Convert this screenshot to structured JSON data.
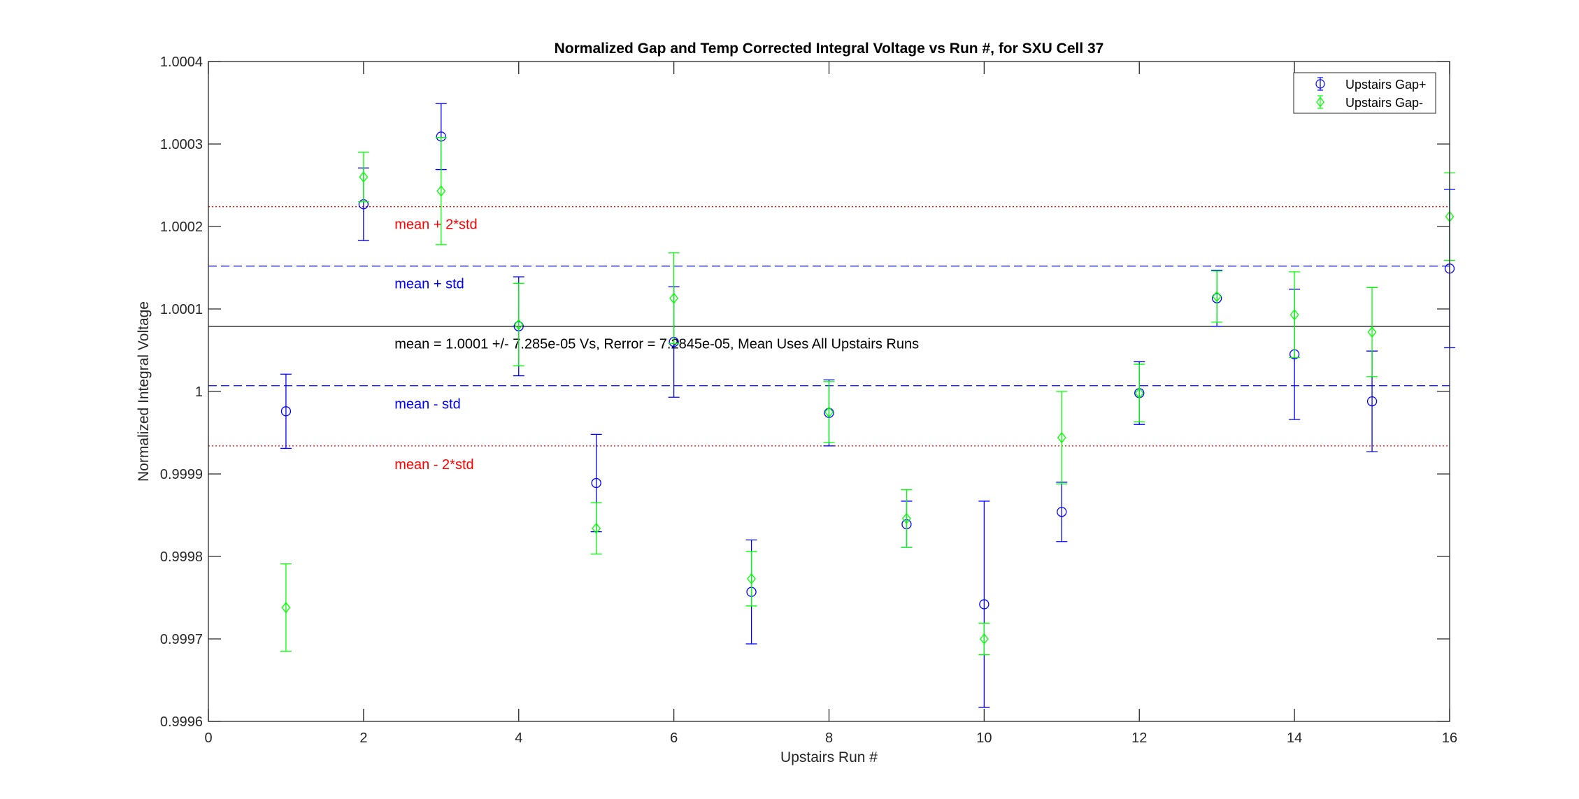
{
  "chart_data": {
    "type": "scatter",
    "title": "Normalized Gap and Temp Corrected Integral Voltage vs Run #, for SXU Cell 37",
    "xlabel": "Upstairs Run #",
    "ylabel": "Normalized Integral Voltage",
    "xlim": [
      0,
      16
    ],
    "ylim": [
      0.9996,
      1.0004
    ],
    "xticks": [
      0,
      2,
      4,
      6,
      8,
      10,
      12,
      14,
      16
    ],
    "xtick_labels": [
      "0",
      "2",
      "4",
      "6",
      "8",
      "10",
      "12",
      "14",
      "16"
    ],
    "yticks": [
      0.9996,
      0.9997,
      0.9998,
      0.9999,
      1.0,
      1.0001,
      1.0002,
      1.0003,
      1.0004
    ],
    "ytick_labels": [
      "0.9996",
      "0.9997",
      "0.9998",
      "0.9999",
      "1",
      "1.0001",
      "1.0002",
      "1.0003",
      "1.0004"
    ],
    "grid": false,
    "legend_position": "top-right",
    "series": [
      {
        "name": "Upstairs Gap+",
        "marker": "circle",
        "color": "#0000ff",
        "x": [
          1,
          2,
          3,
          4,
          5,
          6,
          7,
          8,
          9,
          10,
          11,
          12,
          13,
          14,
          15,
          16
        ],
        "y": [
          0.999976,
          1.000227,
          1.000309,
          1.000079,
          0.999889,
          1.00006,
          0.999757,
          0.999974,
          0.999839,
          0.999742,
          0.999854,
          0.999998,
          1.000113,
          1.000045,
          0.999988,
          1.000149
        ],
        "err_low": [
          4.5e-05,
          4.4e-05,
          4e-05,
          6e-05,
          5.9e-05,
          6.7e-05,
          6.3e-05,
          4e-05,
          2.8e-05,
          0.000125,
          3.6e-05,
          3.8e-05,
          3.4e-05,
          7.9e-05,
          6.1e-05,
          9.6e-05
        ],
        "err_high": [
          4.5e-05,
          4.4e-05,
          4e-05,
          6e-05,
          5.9e-05,
          6.7e-05,
          6.3e-05,
          4e-05,
          2.8e-05,
          0.000125,
          3.6e-05,
          3.8e-05,
          3.4e-05,
          7.9e-05,
          6.1e-05,
          9.6e-05
        ]
      },
      {
        "name": "Upstairs Gap-",
        "marker": "diamond",
        "color": "#00ff00",
        "x": [
          1,
          2,
          3,
          4,
          5,
          6,
          7,
          8,
          9,
          10,
          11,
          12,
          13,
          14,
          15,
          16
        ],
        "y": [
          0.999738,
          1.00026,
          1.000243,
          1.000081,
          0.999834,
          1.000113,
          0.999773,
          0.999975,
          0.999846,
          0.9997,
          0.999944,
          0.999998,
          1.000115,
          1.000093,
          1.000072,
          1.000212
        ],
        "err_low": [
          5.3e-05,
          3e-05,
          6.5e-05,
          5e-05,
          3.1e-05,
          5.5e-05,
          3.3e-05,
          3.7e-05,
          3.5e-05,
          1.9e-05,
          5.6e-05,
          3.5e-05,
          3.1e-05,
          5.2e-05,
          5.4e-05,
          5.3e-05
        ],
        "err_high": [
          5.3e-05,
          3e-05,
          6.5e-05,
          5e-05,
          3.1e-05,
          5.5e-05,
          3.3e-05,
          3.7e-05,
          3.5e-05,
          1.9e-05,
          5.6e-05,
          3.5e-05,
          3.1e-05,
          5.2e-05,
          5.4e-05,
          5.3e-05
        ]
      }
    ],
    "reference_lines": [
      {
        "y": 1.000224,
        "style": "dotted",
        "color": "#ff0000",
        "label": "mean + 2*std",
        "label_color": "#ff0000",
        "label_x": 2.4,
        "label_y": 1.000203
      },
      {
        "y": 1.000152,
        "style": "dashed",
        "color": "#0000ff",
        "label": "mean + std",
        "label_color": "#0000ff",
        "label_x": 2.4,
        "label_y": 1.000131
      },
      {
        "y": 1.000079,
        "style": "solid",
        "color": "#000000",
        "label": "mean = 1.0001 +/- 7.285e-05 Vs, Rerror = 7.2845e-05, Mean Uses All Upstairs Runs",
        "label_color": "#000000",
        "label_x": 2.4,
        "label_y": 1.000058
      },
      {
        "y": 1.000007,
        "style": "dashed",
        "color": "#0000ff",
        "label": "mean - std",
        "label_color": "#0000ff",
        "label_x": 2.4,
        "label_y": 0.999985
      },
      {
        "y": 0.999934,
        "style": "dotted",
        "color": "#ff0000",
        "label": "mean - 2*std",
        "label_color": "#ff0000",
        "label_x": 2.4,
        "label_y": 0.999912
      }
    ]
  }
}
